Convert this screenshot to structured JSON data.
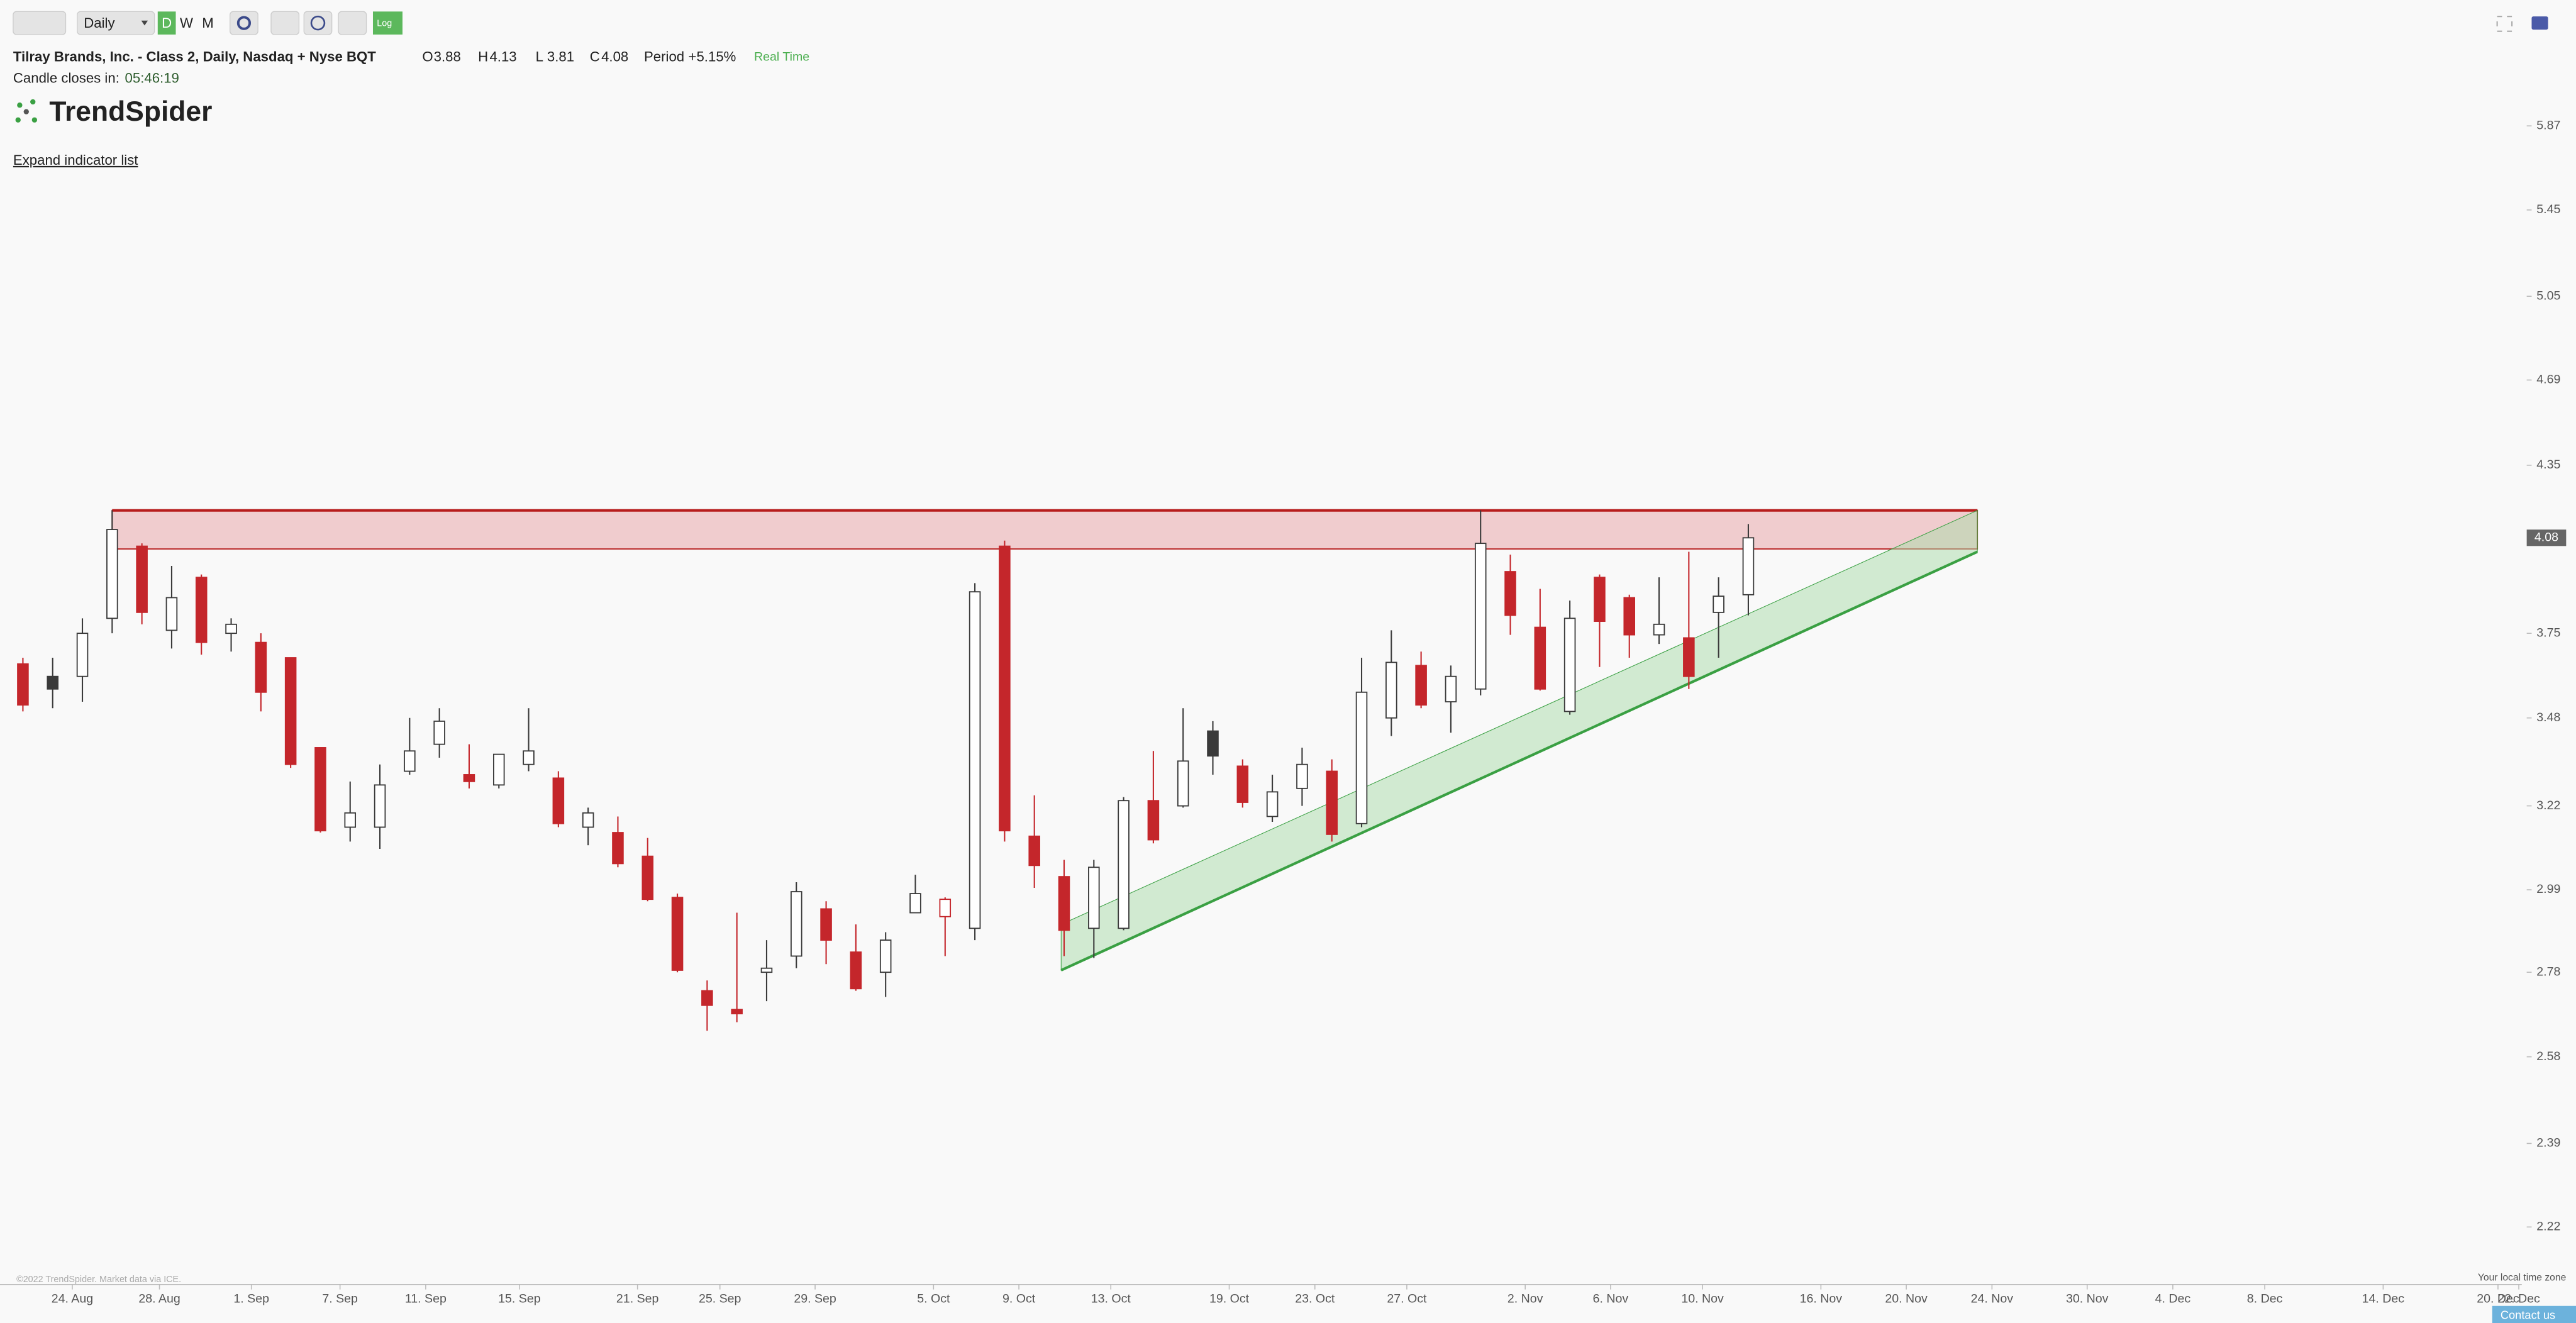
{
  "ui": {
    "interval": "Daily",
    "buttons": [
      "D",
      "W",
      "M"
    ],
    "log_button": "Log",
    "title": "Tilray Brands, Inc. - Class 2, Daily, Nasdaq + Nyse BQT",
    "ohlc": [
      {
        "label": "O",
        "value": "3.88"
      },
      {
        "label": "H",
        "value": "4.13"
      },
      {
        "label": "L",
        "value": "3.81"
      },
      {
        "label": "C",
        "value": "4.08"
      }
    ],
    "period_label": "Period",
    "period_value": "+5.15%",
    "realtime": "Real Time",
    "countdown_label": "Candle closes in:",
    "countdown": "05:46:19",
    "logo": "TrendSpider",
    "expand_link": "Expand indicator list",
    "copyright": "©2022 TrendSpider. Market data via ICE.",
    "timezone": "Your local time zone",
    "contact": "Contact us"
  },
  "chart_data": {
    "type": "candlestick",
    "log_scale": true,
    "ylim": [
      2.11,
      6.56
    ],
    "yticks": [
      2.22,
      2.39,
      2.58,
      2.78,
      2.99,
      3.22,
      3.48,
      3.75,
      4.35,
      4.69,
      5.05,
      5.45,
      5.87
    ],
    "xlim": [
      -0.77,
      84.0
    ],
    "xticks": [
      {
        "value": 1.66,
        "label": "24. Aug"
      },
      {
        "value": 4.59,
        "label": "28. Aug"
      },
      {
        "value": 7.68,
        "label": "1. Sep"
      },
      {
        "value": 10.66,
        "label": "7. Sep"
      },
      {
        "value": 13.54,
        "label": "11. Sep"
      },
      {
        "value": 16.69,
        "label": "15. Sep"
      },
      {
        "value": 20.66,
        "label": "21. Sep"
      },
      {
        "value": 23.43,
        "label": "25. Sep"
      },
      {
        "value": 26.63,
        "label": "29. Sep"
      },
      {
        "value": 30.61,
        "label": "5. Oct"
      },
      {
        "value": 33.48,
        "label": "9. Oct"
      },
      {
        "value": 36.57,
        "label": "13. Oct"
      },
      {
        "value": 40.55,
        "label": "19. Oct"
      },
      {
        "value": 43.43,
        "label": "23. Oct"
      },
      {
        "value": 46.52,
        "label": "27. Oct"
      },
      {
        "value": 50.5,
        "label": "2. Nov"
      },
      {
        "value": 53.37,
        "label": "6. Nov"
      },
      {
        "value": 56.46,
        "label": "10. Nov"
      },
      {
        "value": 60.44,
        "label": "16. Nov"
      },
      {
        "value": 63.31,
        "label": "20. Nov"
      },
      {
        "value": 66.19,
        "label": "24. Nov"
      },
      {
        "value": 69.39,
        "label": "30. Nov"
      },
      {
        "value": 72.27,
        "label": "4. Dec"
      },
      {
        "value": 75.36,
        "label": "8. Dec"
      },
      {
        "value": 79.34,
        "label": "14. Dec"
      },
      {
        "value": 83.2,
        "label": "20. Dec"
      },
      {
        "value": 83.9,
        "label": "22. Dec"
      }
    ],
    "colors": {
      "up_fill": "#ffffff",
      "dark": "#3a3a3a",
      "down": "#c4262b"
    },
    "series": [
      {
        "open": [
          3.65,
          3.61,
          3.61,
          3.8,
          4.05,
          3.76,
          3.94,
          3.75,
          3.72,
          3.67,
          3.39,
          3.16,
          3.16,
          3.32,
          3.4,
          3.31,
          3.28,
          3.34,
          3.3,
          3.16,
          3.145,
          3.08,
          2.97,
          2.735,
          2.69,
          2.78,
          2.82,
          2.94,
          2.83,
          2.78,
          2.93,
          2.92,
          2.89,
          4.05,
          3.135,
          3.025,
          2.89,
          2.89,
          3.235,
          3.22,
          3.44,
          3.335,
          3.19,
          3.27,
          3.32,
          3.17,
          3.48,
          3.645,
          3.53,
          3.57,
          3.96,
          3.77,
          3.5,
          3.94,
          3.87,
          3.745,
          3.735,
          3.82,
          3.88
        ],
        "high": [
          3.67,
          3.67,
          3.8,
          4.18,
          4.06,
          3.98,
          3.95,
          3.8,
          3.75,
          3.67,
          3.39,
          3.29,
          3.34,
          3.48,
          3.51,
          3.4,
          3.37,
          3.51,
          3.32,
          3.215,
          3.19,
          3.13,
          2.98,
          2.76,
          2.93,
          2.86,
          3.01,
          2.96,
          2.9,
          2.88,
          3.03,
          2.97,
          3.92,
          4.07,
          3.25,
          3.07,
          3.07,
          3.245,
          3.38,
          3.51,
          3.47,
          3.355,
          3.31,
          3.39,
          3.355,
          3.67,
          3.76,
          3.69,
          3.645,
          4.18,
          4.02,
          3.9,
          3.86,
          3.95,
          3.88,
          3.94,
          4.03,
          3.94,
          4.13
        ],
        "low": [
          3.5,
          3.51,
          3.53,
          3.75,
          3.78,
          3.7,
          3.68,
          3.69,
          3.5,
          3.33,
          3.145,
          3.12,
          3.1,
          3.31,
          3.36,
          3.27,
          3.27,
          3.32,
          3.16,
          3.11,
          3.05,
          2.96,
          2.78,
          2.64,
          2.66,
          2.71,
          2.79,
          2.8,
          2.735,
          2.72,
          2.93,
          2.82,
          2.86,
          3.12,
          2.995,
          2.82,
          2.815,
          2.885,
          3.115,
          3.215,
          3.31,
          3.215,
          3.175,
          3.22,
          3.12,
          3.16,
          3.425,
          3.51,
          3.435,
          3.55,
          3.745,
          3.565,
          3.49,
          3.64,
          3.67,
          3.715,
          3.57,
          3.67,
          3.81
        ],
        "close": [
          3.52,
          3.57,
          3.75,
          4.11,
          3.82,
          3.87,
          3.72,
          3.78,
          3.56,
          3.34,
          3.15,
          3.2,
          3.28,
          3.38,
          3.47,
          3.29,
          3.37,
          3.38,
          3.17,
          3.2,
          3.06,
          2.965,
          2.785,
          2.7,
          2.68,
          2.79,
          2.985,
          2.86,
          2.74,
          2.86,
          2.98,
          2.965,
          3.89,
          3.15,
          3.055,
          2.885,
          3.05,
          3.235,
          3.125,
          3.35,
          3.365,
          3.23,
          3.26,
          3.34,
          3.14,
          3.56,
          3.655,
          3.52,
          3.61,
          4.06,
          3.81,
          3.57,
          3.8,
          3.79,
          3.745,
          3.78,
          3.61,
          3.875,
          4.08
        ]
      }
    ],
    "price_marker": 4.08,
    "zone": {
      "start": 3,
      "end": 65.7,
      "top": 4.18,
      "bottom": 4.04,
      "line_color": "#b71c1c",
      "fill": "#e8a0a4"
    },
    "channel": {
      "start": 34.9,
      "end": 65.7,
      "lower": [
        2.785,
        4.03
      ],
      "upper": [
        2.9,
        4.18
      ],
      "line_color": "#3aa043",
      "fill": "#a9dca9"
    }
  }
}
